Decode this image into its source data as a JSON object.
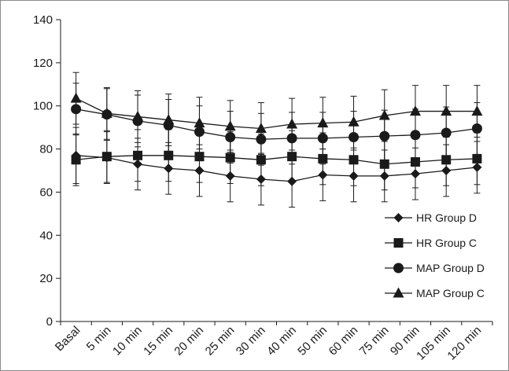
{
  "chart_data": {
    "type": "line",
    "categories": [
      "Basal",
      "5 min",
      "10 min",
      "15 min",
      "20 min",
      "25 min",
      "30 min",
      "40 min",
      "50 min",
      "60 min",
      "75 min",
      "90 min",
      "105 min",
      "120 min"
    ],
    "ylim": [
      0,
      140
    ],
    "yticks": [
      0,
      20,
      40,
      60,
      80,
      100,
      120,
      140
    ],
    "grid": false,
    "legend_position": "right",
    "title": "",
    "xlabel": "",
    "ylabel": "",
    "series": [
      {
        "name": "HR Group D",
        "marker": "diamond",
        "values": [
          77,
          76,
          73,
          71,
          70,
          67.5,
          66,
          65,
          68,
          67.5,
          67.5,
          68.5,
          70,
          71.5
        ],
        "errors": [
          13,
          12,
          12,
          12,
          12,
          12,
          12,
          12,
          12,
          12,
          12,
          12,
          12,
          12
        ]
      },
      {
        "name": "HR Group C",
        "marker": "square",
        "values": [
          75,
          76.5,
          77,
          77,
          76.5,
          76,
          75,
          76.5,
          75.5,
          75,
          73,
          74,
          75,
          75.5
        ],
        "errors": [
          12,
          12,
          12,
          12,
          12,
          12,
          12,
          12,
          12,
          12,
          12,
          12,
          12,
          12
        ]
      },
      {
        "name": "MAP Group D",
        "marker": "circle",
        "values": [
          98.5,
          96,
          93,
          91,
          88,
          85.5,
          84.5,
          85,
          85,
          85.5,
          86,
          86.5,
          87.5,
          89.5
        ],
        "errors": [
          12,
          12,
          12,
          12,
          12,
          12,
          12,
          12,
          12,
          12,
          12,
          12,
          12,
          12
        ]
      },
      {
        "name": "MAP Group C",
        "marker": "triangle",
        "values": [
          103.5,
          96.5,
          95,
          93.5,
          92,
          90.5,
          89.5,
          91.5,
          92,
          92.5,
          95.5,
          97.5,
          97.5,
          97.5
        ],
        "errors": [
          12,
          12,
          12,
          12,
          12,
          12,
          12,
          12,
          12,
          12,
          12,
          12,
          12,
          12
        ]
      }
    ],
    "colors": {
      "line": "#1a1a1a",
      "marker": "#1a1a1a",
      "axis": "#1a1a1a",
      "frame": "#8a8a8a"
    }
  }
}
